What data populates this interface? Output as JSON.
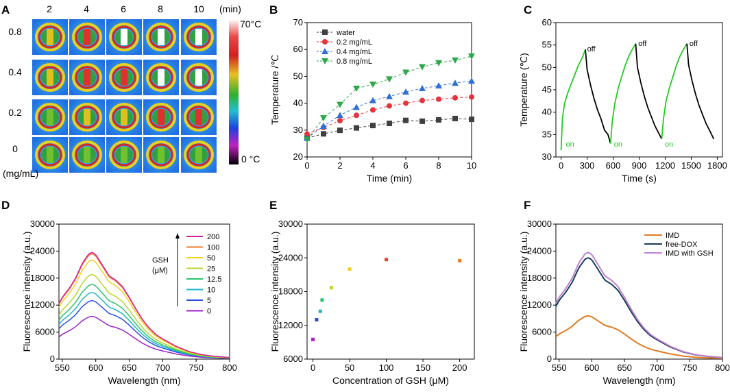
{
  "panels": {
    "A": "A",
    "B": "B",
    "C": "C",
    "D": "D",
    "E": "E",
    "F": "F"
  },
  "panelA": {
    "time_labels": [
      "2",
      "4",
      "6",
      "8",
      "10"
    ],
    "time_unit": "(min)",
    "conc_labels": [
      "0.8",
      "0.4",
      "0.2",
      "0"
    ],
    "conc_unit": "(mg/mL)",
    "colorbar_max": "70°C",
    "colorbar_min": "0 °C"
  },
  "chart_data": [
    {
      "id": "B",
      "type": "scatter",
      "xlabel": "Time (min)",
      "ylabel": "Temperature /℃",
      "xlim": [
        0,
        10
      ],
      "ylim": [
        20,
        70
      ],
      "xticks": [
        0,
        2,
        4,
        6,
        8,
        10
      ],
      "yticks": [
        20,
        30,
        40,
        50,
        60,
        70
      ],
      "legend": "top-left",
      "series": [
        {
          "name": "water",
          "color": "#404040",
          "marker": "square",
          "x": [
            0,
            1,
            2,
            3,
            4,
            5,
            6,
            7,
            8,
            9,
            10
          ],
          "y": [
            27,
            28.6,
            29.9,
            30.8,
            31.7,
            32.5,
            33.6,
            33.3,
            33.8,
            34.3,
            34
          ]
        },
        {
          "name": "0.2 mg/mL",
          "color": "#e8333a",
          "marker": "circle",
          "x": [
            0,
            1,
            2,
            3,
            4,
            5,
            6,
            7,
            8,
            9,
            10
          ],
          "y": [
            28.5,
            31,
            33.5,
            35.5,
            37.5,
            39,
            40,
            41,
            41.5,
            42,
            42.3
          ]
        },
        {
          "name": "0.4 mg/mL",
          "color": "#2f6fd6",
          "marker": "triangle",
          "x": [
            0,
            1,
            2,
            3,
            4,
            5,
            6,
            7,
            8,
            9,
            10
          ],
          "y": [
            27,
            31.5,
            35.5,
            38.5,
            41,
            42.5,
            44.2,
            45.5,
            46.5,
            47.5,
            48.3
          ]
        },
        {
          "name": "0.8 mg/mL",
          "color": "#2aa84a",
          "marker": "triangle-down",
          "x": [
            0,
            1,
            2,
            3,
            4,
            5,
            6,
            7,
            8,
            9,
            10
          ],
          "y": [
            26.5,
            34.5,
            39.5,
            45.5,
            47,
            49,
            51.5,
            53.5,
            55,
            56,
            57.5
          ]
        }
      ]
    },
    {
      "id": "C",
      "type": "line",
      "xlabel": "Time (s)",
      "ylabel": "Temperature (℃)",
      "xlim": [
        -60,
        1860
      ],
      "ylim": [
        30,
        60
      ],
      "xticks": [
        0,
        300,
        600,
        900,
        1200,
        1500,
        1800
      ],
      "yticks": [
        30,
        35,
        40,
        45,
        50,
        55,
        60
      ],
      "series": [
        {
          "name": "heating-1",
          "color": "#22cc22",
          "x": [
            0,
            15,
            40,
            80,
            120,
            160,
            200,
            240,
            280
          ],
          "y": [
            31.5,
            38.5,
            42,
            44.5,
            46.5,
            48.5,
            50.5,
            52,
            54
          ]
        },
        {
          "name": "cooling-1",
          "color": "#000000",
          "x": [
            280,
            300,
            340,
            380,
            420,
            460,
            500,
            540,
            570
          ],
          "y": [
            54,
            49.5,
            46,
            43,
            40.5,
            38.5,
            36,
            35,
            33
          ]
        },
        {
          "name": "heating-2",
          "color": "#22cc22",
          "x": [
            570,
            590,
            620,
            660,
            700,
            740,
            780,
            820,
            860
          ],
          "y": [
            33,
            38,
            42,
            45.5,
            48,
            50.5,
            52.5,
            54,
            55.3
          ]
        },
        {
          "name": "cooling-2",
          "color": "#000000",
          "x": [
            860,
            880,
            920,
            960,
            1000,
            1040,
            1080,
            1120,
            1160
          ],
          "y": [
            55.3,
            50,
            46.5,
            43.5,
            41,
            39,
            37,
            35.5,
            34
          ]
        },
        {
          "name": "heating-3",
          "color": "#22cc22",
          "x": [
            1160,
            1180,
            1210,
            1250,
            1290,
            1330,
            1370,
            1410,
            1450
          ],
          "y": [
            34,
            38.5,
            42.5,
            45.5,
            48,
            50.5,
            52.5,
            54,
            55.3
          ]
        },
        {
          "name": "cooling-3",
          "color": "#000000",
          "x": [
            1450,
            1470,
            1510,
            1550,
            1590,
            1630,
            1670,
            1710,
            1760
          ],
          "y": [
            55.3,
            50.5,
            47,
            44,
            41.5,
            39.5,
            37.5,
            36,
            34
          ]
        }
      ],
      "annotations": [
        {
          "text": "on",
          "x": 55,
          "y": 32.3,
          "color": "#22cc22"
        },
        {
          "text": "off",
          "x": 300,
          "y": 53.6,
          "color": "#000000"
        },
        {
          "text": "on",
          "x": 610,
          "y": 32.3,
          "color": "#22cc22"
        },
        {
          "text": "off",
          "x": 890,
          "y": 54.8,
          "color": "#000000"
        },
        {
          "text": "on",
          "x": 1195,
          "y": 32.3,
          "color": "#22cc22"
        },
        {
          "text": "off",
          "x": 1480,
          "y": 54.8,
          "color": "#000000"
        }
      ]
    },
    {
      "id": "D",
      "type": "line",
      "xlabel": "Wavelength (nm)",
      "ylabel": "Fluorescence intensity (a.u.)",
      "xlim": [
        545,
        800
      ],
      "ylim": [
        0,
        30000
      ],
      "xticks": [
        550,
        600,
        650,
        700,
        750,
        800
      ],
      "yticks": [
        0,
        6000,
        12000,
        18000,
        24000,
        30000
      ],
      "legend_title": "GSH\n(μM)",
      "legend_title_lines": [
        "GSH",
        "(μM)"
      ],
      "series": [
        {
          "name": "200",
          "color": "#d4209a",
          "scale": 23700
        },
        {
          "name": "100",
          "color": "#f07a28",
          "scale": 23400
        },
        {
          "name": "50",
          "color": "#f0d020",
          "scale": 22000
        },
        {
          "name": "25",
          "color": "#b4d82a",
          "scale": 18800
        },
        {
          "name": "12.5",
          "color": "#28c46a",
          "scale": 16600
        },
        {
          "name": "10",
          "color": "#20b4c8",
          "scale": 14800
        },
        {
          "name": "5",
          "color": "#2c4ce0",
          "scale": 13000
        },
        {
          "name": "0",
          "color": "#a020c8",
          "scale": 9500
        }
      ],
      "profile_x": [
        545,
        550,
        560,
        570,
        580,
        590,
        595,
        600,
        610,
        620,
        630,
        640,
        650,
        660,
        670,
        680,
        690,
        700,
        720,
        740,
        760,
        780,
        800
      ],
      "profile_y": [
        0.52,
        0.58,
        0.66,
        0.76,
        0.9,
        0.99,
        1.0,
        0.98,
        0.88,
        0.78,
        0.74,
        0.68,
        0.58,
        0.47,
        0.37,
        0.29,
        0.23,
        0.19,
        0.12,
        0.07,
        0.04,
        0.025,
        0.015
      ]
    },
    {
      "id": "E",
      "type": "scatter",
      "xlabel": "Concentration of GSH (μM)",
      "ylabel": "Fluorescence intensity (a.u.)",
      "xlim": [
        -8,
        220
      ],
      "ylim": [
        6000,
        30000
      ],
      "xticks": [
        0,
        50,
        100,
        150,
        200
      ],
      "yticks": [
        6000,
        12000,
        18000,
        24000,
        30000
      ],
      "x": [
        0,
        5,
        10,
        12.5,
        25,
        50,
        100,
        200
      ],
      "y": [
        9500,
        13000,
        14500,
        16500,
        18700,
        22000,
        23700,
        23500
      ],
      "colors": [
        "#a020c8",
        "#2c4ce0",
        "#20b4c8",
        "#28c46a",
        "#b4d82a",
        "#f0d020",
        "#f04030",
        "#f07a28"
      ]
    },
    {
      "id": "F",
      "type": "line",
      "xlabel": "Wavelength (nm)",
      "ylabel": "Fluorescence intensity (a.u.)",
      "xlim": [
        545,
        800
      ],
      "ylim": [
        0,
        30000
      ],
      "xticks": [
        550,
        600,
        650,
        700,
        750,
        800
      ],
      "yticks": [
        0,
        6000,
        12000,
        18000,
        24000,
        30000
      ],
      "legend": "top-right",
      "series": [
        {
          "name": "IMD",
          "color": "#e07a20",
          "scale": 9600
        },
        {
          "name": "free-DOX",
          "color": "#163e5a",
          "scale": 22500
        },
        {
          "name": "IMD with GSH",
          "color": "#c080d0",
          "scale": 23700
        }
      ],
      "profile_x": [
        545,
        550,
        560,
        570,
        580,
        590,
        595,
        600,
        610,
        620,
        630,
        640,
        650,
        660,
        670,
        680,
        690,
        700,
        720,
        740,
        760,
        780,
        800
      ],
      "profile_y": [
        0.52,
        0.58,
        0.66,
        0.76,
        0.9,
        0.99,
        1.0,
        0.98,
        0.88,
        0.78,
        0.74,
        0.68,
        0.58,
        0.47,
        0.37,
        0.29,
        0.23,
        0.19,
        0.12,
        0.07,
        0.04,
        0.025,
        0.015
      ]
    }
  ]
}
